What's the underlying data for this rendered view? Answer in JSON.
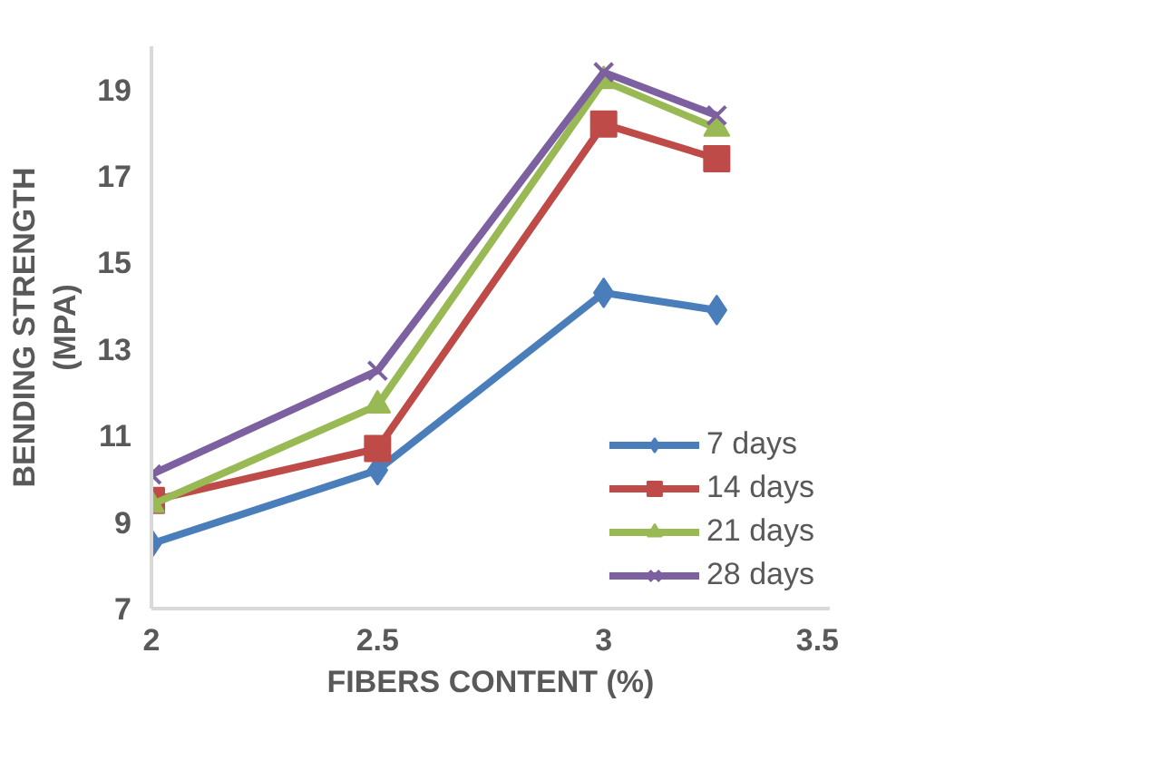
{
  "chart_data": {
    "type": "line",
    "xlabel": "FIBERS CONTENT (%)",
    "ylabel": "BENDING STRENGTH\n(MPA)",
    "x": [
      2,
      2.5,
      3,
      3.25
    ],
    "series": [
      {
        "name": "7 days",
        "color": "#4a7ebb",
        "marker": "diamond",
        "values": [
          8.5,
          10.2,
          14.3,
          13.9
        ]
      },
      {
        "name": "14 days",
        "color": "#be4b48",
        "marker": "square",
        "values": [
          9.5,
          10.7,
          18.2,
          17.4
        ]
      },
      {
        "name": "21 days",
        "color": "#98b954",
        "marker": "triangle",
        "values": [
          9.4,
          11.7,
          19.2,
          18.1
        ]
      },
      {
        "name": "28 days",
        "color": "#7d60a0",
        "marker": "x",
        "values": [
          10.1,
          12.5,
          19.4,
          18.4
        ]
      }
    ],
    "xlim": [
      2,
      3.5
    ],
    "xticks": [
      2,
      2.5,
      3,
      3.5
    ],
    "ylim": [
      7,
      20
    ],
    "yticks": [
      7,
      9,
      11,
      13,
      15,
      17,
      19
    ],
    "grid": false,
    "legend": "bottom right",
    "line_style": "solid"
  }
}
